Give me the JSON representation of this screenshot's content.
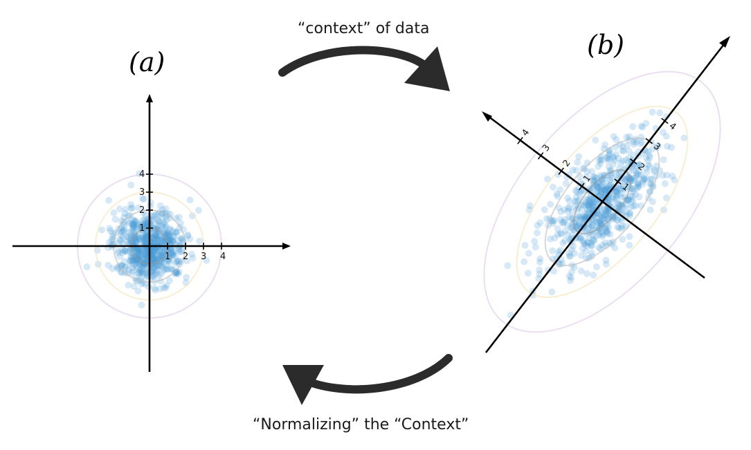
{
  "labels": {
    "panel_a": "(a)",
    "panel_b": "(b)",
    "top_caption": "“context” of data",
    "bottom_caption": "“Normalizing” the “Context”"
  },
  "colors": {
    "points": "#4a9bd6",
    "contour_1": "#9a9a9a",
    "contour_2": "#bdbdbd",
    "contour_3": "#f3e2b8",
    "contour_4": "#dcc8e6",
    "axis": "#000000",
    "arrow": "#2b2b2b"
  },
  "panel_a": {
    "x_ticks": [
      "1",
      "2",
      "3",
      "4"
    ],
    "y_ticks": [
      "1",
      "2",
      "3",
      "4"
    ]
  },
  "panel_b": {
    "major_axis_ticks": [
      "1",
      "2",
      "3",
      "4"
    ],
    "minor_axis_ticks": [
      "1",
      "2",
      "3",
      "4"
    ]
  }
}
